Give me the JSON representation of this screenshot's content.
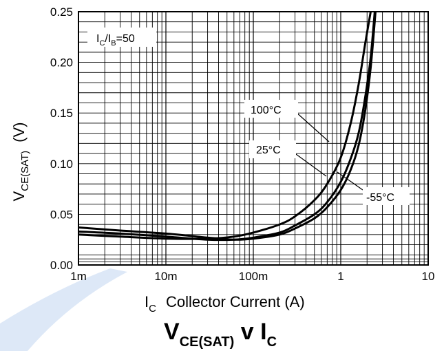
{
  "chart_data": {
    "type": "line",
    "title": {
      "main_v": "V",
      "main_sub": "CE(SAT)",
      "main_mid": " v I",
      "main_sub2": "C"
    },
    "xlabel": {
      "symbol": "I",
      "sub": "C",
      "text": "Collector Current (A)"
    },
    "ylabel": {
      "symbol": "V",
      "sub": "CE(SAT)",
      "unit": "(V)"
    },
    "x_scale": "log",
    "xlim": [
      0.001,
      10
    ],
    "ylim": [
      0,
      0.25
    ],
    "x_ticks": [
      {
        "value": 0.001,
        "label": "1m"
      },
      {
        "value": 0.01,
        "label": "10m"
      },
      {
        "value": 0.1,
        "label": "100m"
      },
      {
        "value": 1,
        "label": "1"
      },
      {
        "value": 10,
        "label": "10"
      }
    ],
    "y_ticks": [
      {
        "value": 0,
        "label": "0.00"
      },
      {
        "value": 0.05,
        "label": "0.05"
      },
      {
        "value": 0.1,
        "label": "0.10"
      },
      {
        "value": 0.15,
        "label": "0.15"
      },
      {
        "value": 0.2,
        "label": "0.20"
      },
      {
        "value": 0.25,
        "label": "0.25"
      }
    ],
    "grid": true,
    "condition": {
      "left": "I",
      "left_sub": "C",
      "slash": "/I",
      "right_sub": "B",
      "value": "=50"
    },
    "series": [
      {
        "name": "100°C",
        "x": [
          0.001,
          0.003,
          0.01,
          0.03,
          0.06,
          0.1,
          0.2,
          0.3,
          0.5,
          0.7,
          1.0,
          1.3,
          1.6,
          1.9,
          2.2
        ],
        "y": [
          0.03,
          0.028,
          0.026,
          0.026,
          0.028,
          0.032,
          0.04,
          0.048,
          0.064,
          0.08,
          0.106,
          0.14,
          0.178,
          0.218,
          0.25
        ]
      },
      {
        "name": "25°C",
        "x": [
          0.001,
          0.003,
          0.01,
          0.03,
          0.06,
          0.1,
          0.2,
          0.3,
          0.5,
          0.7,
          1.0,
          1.3,
          1.6,
          1.9,
          2.2,
          2.45
        ],
        "y": [
          0.033,
          0.031,
          0.028,
          0.025,
          0.025,
          0.027,
          0.032,
          0.039,
          0.05,
          0.062,
          0.082,
          0.105,
          0.13,
          0.165,
          0.205,
          0.25
        ]
      },
      {
        "name": "-55°C",
        "x": [
          0.001,
          0.003,
          0.01,
          0.03,
          0.06,
          0.1,
          0.2,
          0.3,
          0.5,
          0.7,
          1.0,
          1.3,
          1.6,
          1.9,
          2.2,
          2.5
        ],
        "y": [
          0.037,
          0.034,
          0.031,
          0.027,
          0.025,
          0.026,
          0.03,
          0.036,
          0.046,
          0.057,
          0.074,
          0.094,
          0.118,
          0.152,
          0.195,
          0.25
        ]
      }
    ]
  }
}
